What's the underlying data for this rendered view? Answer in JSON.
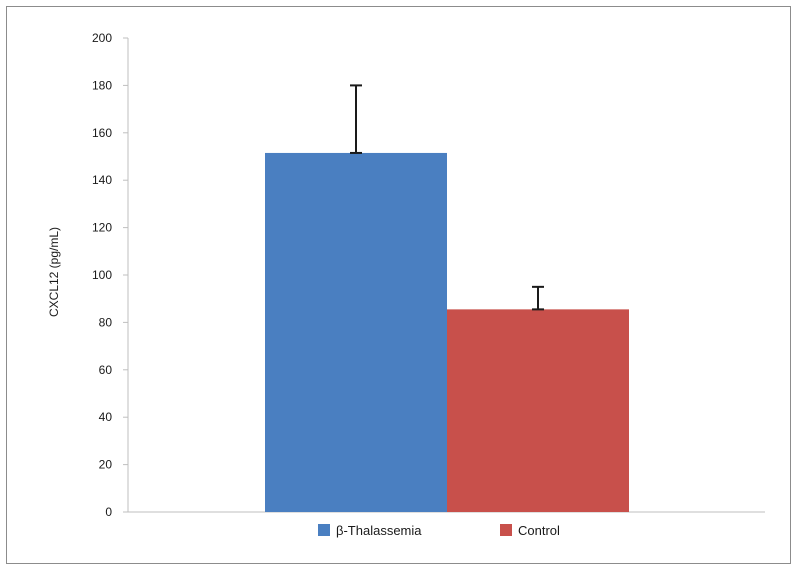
{
  "chart_data": {
    "type": "bar",
    "title": "",
    "xlabel": "",
    "ylabel": "CXCL12 (pg/mL)",
    "ylim": [
      0,
      200
    ],
    "yticks": [
      0,
      20,
      40,
      60,
      80,
      100,
      120,
      140,
      160,
      180,
      200
    ],
    "grid": false,
    "legend_position": "bottom",
    "series": [
      {
        "name": "β-Thalassemia",
        "value": 151.5,
        "error": 28.5,
        "color": "#4a7fc1"
      },
      {
        "name": "Control",
        "value": 85.5,
        "error": 9.5,
        "color": "#c8504b"
      }
    ]
  }
}
